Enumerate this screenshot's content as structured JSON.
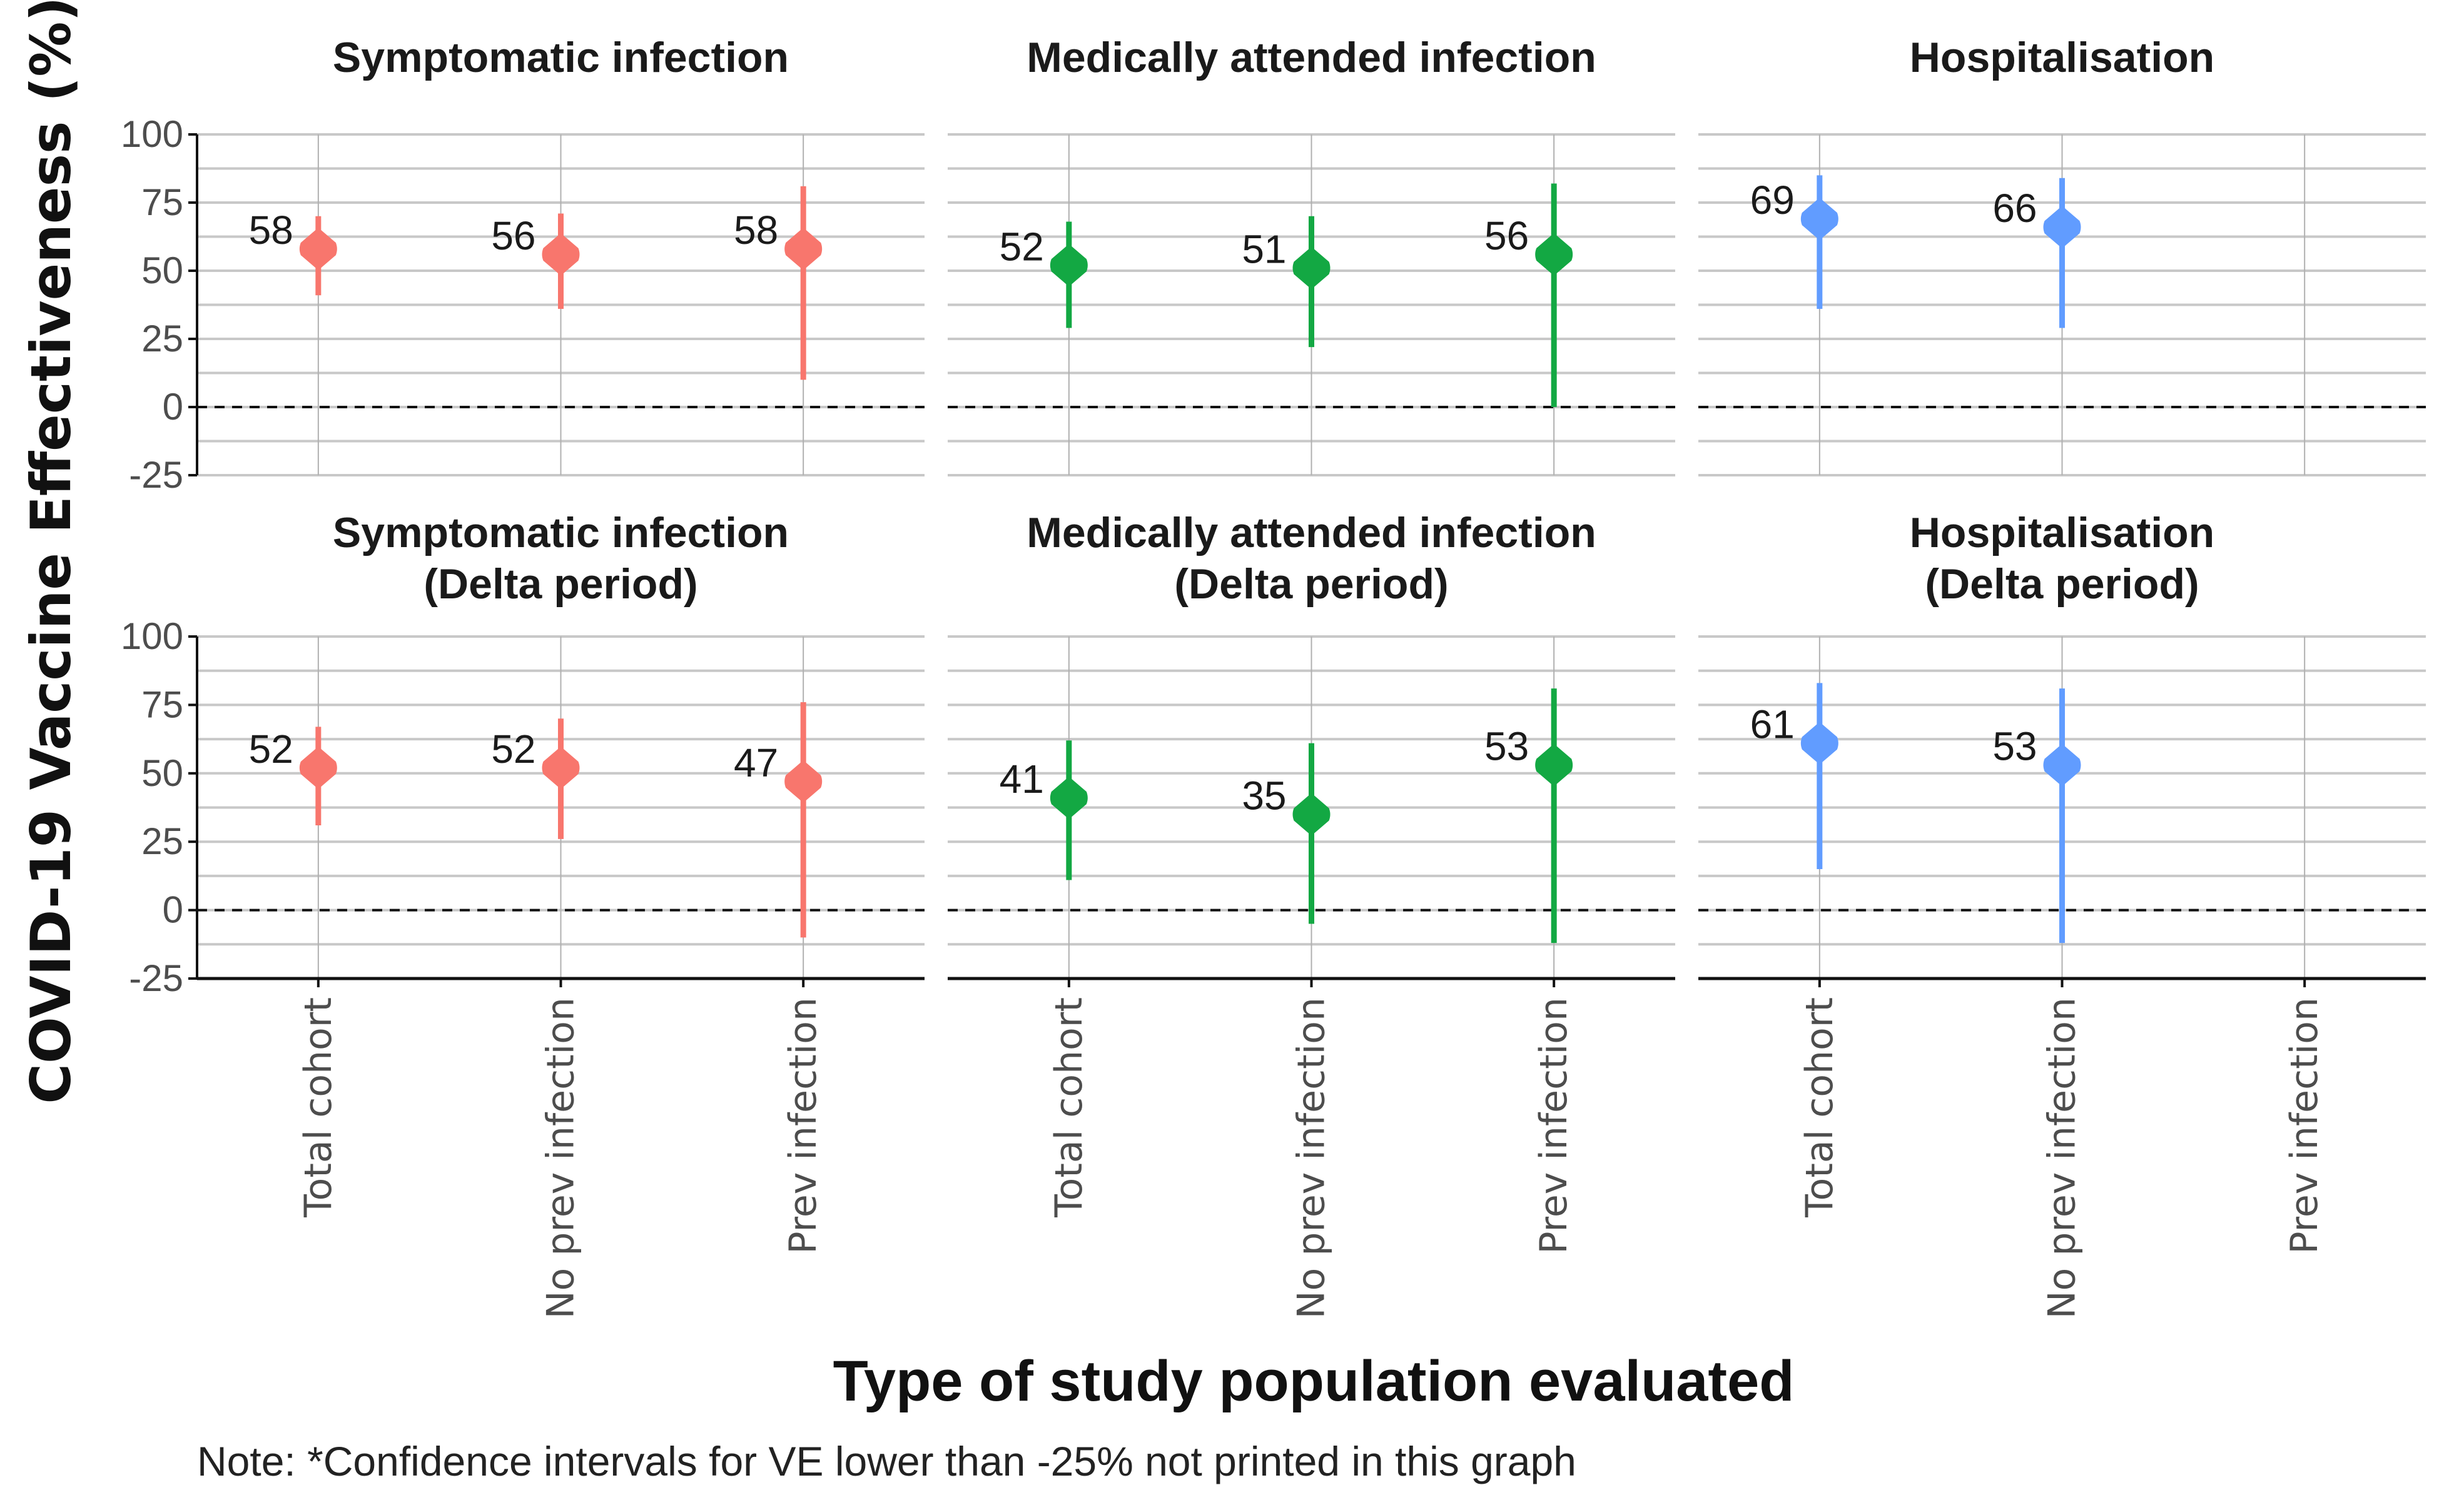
{
  "chart_data": {
    "type": "scatter",
    "subtype": "point-range faceted",
    "ylabel": "COVID-19 Vaccine Effectiveness (%)",
    "xlabel": "Type of study population evaluated",
    "note": "Note: *Confidence intervals for VE lower than -25% not printed in this graph",
    "ylim": [
      -25,
      100
    ],
    "yticks": [
      100,
      75,
      50,
      25,
      0,
      -25
    ],
    "ytick_labels": [
      "100",
      "75",
      "50",
      "25",
      "0",
      "-25"
    ],
    "reference_line": {
      "y": 0,
      "style": "dashed"
    },
    "grid": true,
    "categories": [
      "Total cohort",
      "No prev infection",
      "Prev infection"
    ],
    "outcome_colors": {
      "Symptomatic infection": "#F8766D",
      "Medically attended infection": "#13A843",
      "Hospitalisation": "#619CFF"
    },
    "facets": [
      {
        "title": [
          "Symptomatic infection"
        ],
        "outcome": "Symptomatic infection",
        "row": 0,
        "col": 0,
        "points": [
          {
            "category": "Total cohort",
            "ve": 58,
            "lower": 41,
            "upper": 70,
            "label": "58"
          },
          {
            "category": "No prev infection",
            "ve": 56,
            "lower": 36,
            "upper": 71,
            "label": "56"
          },
          {
            "category": "Prev infection",
            "ve": 58,
            "lower": 10,
            "upper": 81,
            "label": "58"
          }
        ]
      },
      {
        "title": [
          "Medically attended infection"
        ],
        "outcome": "Medically attended infection",
        "row": 0,
        "col": 1,
        "points": [
          {
            "category": "Total cohort",
            "ve": 52,
            "lower": 29,
            "upper": 68,
            "label": "52"
          },
          {
            "category": "No prev infection",
            "ve": 51,
            "lower": 22,
            "upper": 70,
            "label": "51"
          },
          {
            "category": "Prev infection",
            "ve": 56,
            "lower": 0,
            "upper": 82,
            "label": "56"
          }
        ]
      },
      {
        "title": [
          "Hospitalisation"
        ],
        "outcome": "Hospitalisation",
        "row": 0,
        "col": 2,
        "points": [
          {
            "category": "Total cohort",
            "ve": 69,
            "lower": 36,
            "upper": 85,
            "label": "69"
          },
          {
            "category": "No prev infection",
            "ve": 66,
            "lower": 29,
            "upper": 84,
            "label": "66"
          }
        ]
      },
      {
        "title": [
          "Symptomatic infection",
          "(Delta period)"
        ],
        "outcome": "Symptomatic infection",
        "row": 1,
        "col": 0,
        "points": [
          {
            "category": "Total cohort",
            "ve": 52,
            "lower": 31,
            "upper": 67,
            "label": "52"
          },
          {
            "category": "No prev infection",
            "ve": 52,
            "lower": 26,
            "upper": 70,
            "label": "52"
          },
          {
            "category": "Prev infection",
            "ve": 47,
            "lower": -10,
            "upper": 76,
            "label": "47"
          }
        ]
      },
      {
        "title": [
          "Medically attended infection",
          "(Delta period)"
        ],
        "outcome": "Medically attended infection",
        "row": 1,
        "col": 1,
        "points": [
          {
            "category": "Total cohort",
            "ve": 41,
            "lower": 11,
            "upper": 62,
            "label": "41"
          },
          {
            "category": "No prev infection",
            "ve": 35,
            "lower": -5,
            "upper": 61,
            "label": "35"
          },
          {
            "category": "Prev infection",
            "ve": 53,
            "lower": -12,
            "upper": 81,
            "label": "53"
          }
        ]
      },
      {
        "title": [
          "Hospitalisation",
          "(Delta period)"
        ],
        "outcome": "Hospitalisation",
        "row": 1,
        "col": 2,
        "points": [
          {
            "category": "Total cohort",
            "ve": 61,
            "lower": 15,
            "upper": 83,
            "label": "61"
          },
          {
            "category": "No prev infection",
            "ve": 53,
            "lower": -12,
            "upper": 81,
            "label": "53"
          }
        ]
      }
    ]
  }
}
